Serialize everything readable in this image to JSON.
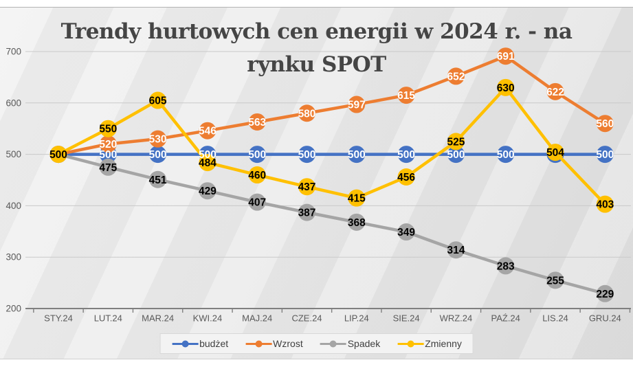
{
  "title": {
    "line1": "Trendy hurtowych cen energii w 2024 r. - na",
    "line2": "rynku SPOT"
  },
  "chart_data": {
    "type": "line",
    "title": "Trendy hurtowych cen energii w 2024 r. - na rynku SPOT",
    "categories": [
      "STY.24",
      "LUT.24",
      "MAR.24",
      "KWI.24",
      "MAJ.24",
      "CZE.24",
      "LIP.24",
      "SIE.24",
      "WRZ.24",
      "PAŹ.24",
      "LIS.24",
      "GRU.24"
    ],
    "series": [
      {
        "name": "budżet",
        "color": "#4472C4",
        "label_color": "#ffffff",
        "values": [
          500,
          500,
          500,
          500,
          500,
          500,
          500,
          500,
          500,
          500,
          500,
          500
        ],
        "labels": [
          null,
          "500",
          "500",
          "500",
          "500",
          "500",
          "500",
          "500",
          "500",
          "500",
          null,
          "500"
        ]
      },
      {
        "name": "Wzrost",
        "color": "#ED7D31",
        "label_color": "#ffffff",
        "values": [
          500,
          520,
          530,
          546,
          563,
          580,
          597,
          615,
          652,
          691,
          622,
          560
        ],
        "labels": [
          null,
          "520",
          "530",
          "546",
          "563",
          "580",
          "597",
          "615",
          "652",
          "691",
          "622",
          "560"
        ]
      },
      {
        "name": "Spadek",
        "color": "#A5A5A5",
        "label_color": "#000000",
        "values": [
          500,
          475,
          451,
          429,
          407,
          387,
          368,
          349,
          314,
          283,
          255,
          229
        ],
        "labels": [
          null,
          "475",
          "451",
          "429",
          "407",
          "387",
          "368",
          "349",
          "314",
          "283",
          "255",
          "229"
        ]
      },
      {
        "name": "Zmienny",
        "color": "#FFC000",
        "label_color": "#000000",
        "values": [
          500,
          550,
          605,
          484,
          460,
          437,
          415,
          456,
          525,
          630,
          504,
          403
        ],
        "labels": [
          "500",
          "550",
          "605",
          "484",
          "460",
          "437",
          "415",
          "456",
          "525",
          "630",
          "504",
          "403"
        ]
      }
    ],
    "ylim": [
      200,
      700
    ],
    "yticks": [
      200,
      300,
      400,
      500,
      600,
      700
    ],
    "grid": true,
    "legend_position": "bottom",
    "axis_color": "#7f7f7f",
    "grid_color": "#c9c9c9",
    "tick_label_color": "#595959"
  }
}
